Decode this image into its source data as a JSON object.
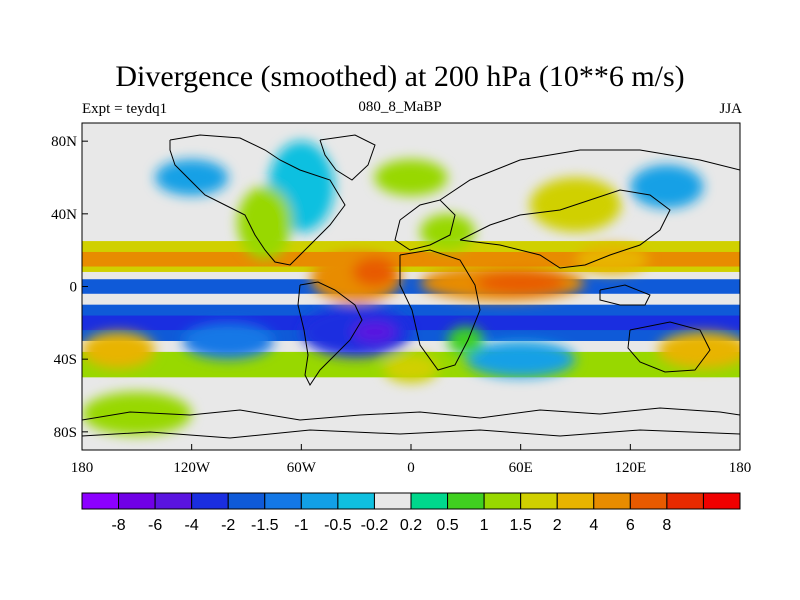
{
  "title": "Divergence (smoothed) at 200 hPa (10**6 m/s)",
  "left_label": "Expt = teydq1",
  "center_label": "080_8_MaBP",
  "right_label": "JJA",
  "map": {
    "lon_range": [
      -180,
      180
    ],
    "lat_range": [
      -90,
      90
    ],
    "x_ticks": [
      {
        "lon": -180,
        "label": "180"
      },
      {
        "lon": -120,
        "label": "120W"
      },
      {
        "lon": -60,
        "label": "60W"
      },
      {
        "lon": 0,
        "label": "0"
      },
      {
        "lon": 60,
        "label": "60E"
      },
      {
        "lon": 120,
        "label": "120E"
      },
      {
        "lon": 180,
        "label": "180"
      }
    ],
    "y_ticks": [
      {
        "lat": 80,
        "label": "80N"
      },
      {
        "lat": 40,
        "label": "40N"
      },
      {
        "lat": 0,
        "label": "0"
      },
      {
        "lat": -40,
        "label": "40S"
      },
      {
        "lat": -80,
        "label": "80S"
      }
    ],
    "zonal_bands": [
      {
        "lat_top": 25,
        "lat_bottom": 8,
        "level": "1.5"
      },
      {
        "lat_top": 19,
        "lat_bottom": 11,
        "level": "4"
      },
      {
        "lat_top": 4,
        "lat_bottom": -4,
        "level": "-2"
      },
      {
        "lat_top": -10,
        "lat_bottom": -30,
        "level": "-2"
      },
      {
        "lat_top": -16,
        "lat_bottom": -24,
        "level": "-4"
      },
      {
        "lat_top": -36,
        "lat_bottom": -50,
        "level": "1"
      }
    ],
    "features": [
      {
        "lon": -60,
        "lat": 55,
        "rlon": 18,
        "rlat": 25,
        "level": "-0.5"
      },
      {
        "lon": -80,
        "lat": 35,
        "rlon": 15,
        "rlat": 20,
        "level": "1"
      },
      {
        "lon": -30,
        "lat": 5,
        "rlon": 25,
        "rlat": 14,
        "level": "4"
      },
      {
        "lon": -20,
        "lat": 8,
        "rlon": 12,
        "rlat": 8,
        "level": "6"
      },
      {
        "lon": 50,
        "lat": 2,
        "rlon": 45,
        "rlat": 10,
        "level": "4"
      },
      {
        "lon": 60,
        "lat": 2,
        "rlon": 25,
        "rlat": 6,
        "level": "6"
      },
      {
        "lon": -30,
        "lat": -25,
        "rlon": 30,
        "rlat": 14,
        "level": "-4"
      },
      {
        "lon": -20,
        "lat": -25,
        "rlon": 12,
        "rlat": 6,
        "level": "-6"
      },
      {
        "lon": 90,
        "lat": 45,
        "rlon": 25,
        "rlat": 15,
        "level": "1.5"
      },
      {
        "lon": 20,
        "lat": 30,
        "rlon": 15,
        "rlat": 10,
        "level": "1"
      },
      {
        "lon": 140,
        "lat": 55,
        "rlon": 20,
        "rlat": 12,
        "level": "-1"
      },
      {
        "lon": -160,
        "lat": -35,
        "rlon": 20,
        "rlat": 10,
        "level": "2"
      },
      {
        "lon": 160,
        "lat": -35,
        "rlon": 25,
        "rlat": 10,
        "level": "2"
      },
      {
        "lon": 0,
        "lat": 60,
        "rlon": 20,
        "rlat": 10,
        "level": "1"
      },
      {
        "lon": 110,
        "lat": 15,
        "rlon": 20,
        "rlat": 8,
        "level": "2"
      },
      {
        "lon": -120,
        "lat": 60,
        "rlon": 20,
        "rlat": 10,
        "level": "-1"
      },
      {
        "lon": -150,
        "lat": -70,
        "rlon": 30,
        "rlat": 12,
        "level": "1"
      },
      {
        "lon": 60,
        "lat": -40,
        "rlon": 30,
        "rlat": 10,
        "level": "-1"
      },
      {
        "lon": 0,
        "lat": -45,
        "rlon": 15,
        "rlat": 8,
        "level": "1.5"
      },
      {
        "lon": -100,
        "lat": -30,
        "rlon": 25,
        "rlat": 10,
        "level": "-1.5"
      },
      {
        "lon": 30,
        "lat": -30,
        "rlon": 10,
        "rlat": 8,
        "level": "0.5"
      }
    ]
  },
  "colorbar": {
    "colors": [
      "#8c00ff",
      "#7000e6",
      "#5a14e0",
      "#1a2ee0",
      "#0f5ad8",
      "#1478e6",
      "#12a0e6",
      "#10c0e0",
      "#e8e8e8",
      "#00d88c",
      "#40d020",
      "#98d800",
      "#d0d000",
      "#e8b400",
      "#e88c00",
      "#e85a00",
      "#e82a00",
      "#f00000"
    ],
    "level_colors": {
      "-8": "#7000e6",
      "-6": "#5a14e0",
      "-4": "#1a2ee0",
      "-2": "#0f5ad8",
      "-1.5": "#1478e6",
      "-1": "#12a0e6",
      "-0.5": "#10c0e0",
      "0.5": "#40d020",
      "1": "#98d800",
      "1.5": "#d0d000",
      "2": "#e8b400",
      "4": "#e88c00",
      "6": "#e85a00",
      "8": "#e82a00"
    },
    "labels": [
      "-8",
      "-6",
      "-4",
      "-2",
      "-1.5",
      "-1",
      "-0.5",
      "-0.2",
      "0.2",
      "0.5",
      "1",
      "1.5",
      "2",
      "4",
      "6",
      "8"
    ]
  }
}
